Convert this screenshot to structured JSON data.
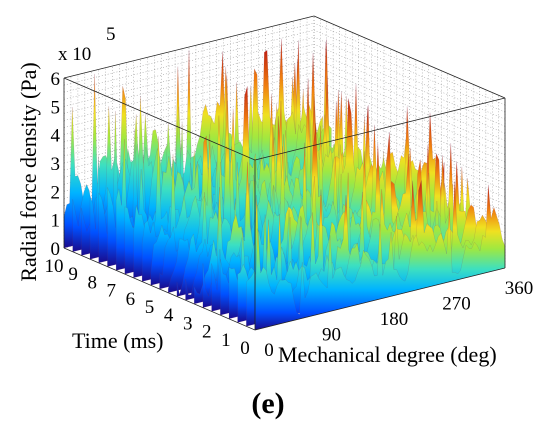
{
  "chart_data": {
    "type": "surface",
    "xlabel": "Mechanical degree (deg)",
    "ylabel": "Time (ms)",
    "zlabel": "Radial force density (Pa)",
    "z_multiplier_label": "x 10",
    "z_multiplier_exponent": "5",
    "x_ticks": [
      "0",
      "90",
      "180",
      "270",
      "360"
    ],
    "y_ticks": [
      "0",
      "1",
      "2",
      "3",
      "4",
      "5",
      "6",
      "7",
      "8",
      "9",
      "10"
    ],
    "z_ticks": [
      "0",
      "1",
      "2",
      "3",
      "4",
      "5",
      "6"
    ],
    "xlim": [
      0,
      360
    ],
    "ylim": [
      0,
      10
    ],
    "zlim": [
      0,
      6
    ],
    "grid": true,
    "colormap": [
      "#1a0a8c",
      "#0050ff",
      "#00b4ff",
      "#3de0c0",
      "#a0e840",
      "#f0e020",
      "#f08010",
      "#c02010"
    ],
    "panel_label": "(e)"
  }
}
